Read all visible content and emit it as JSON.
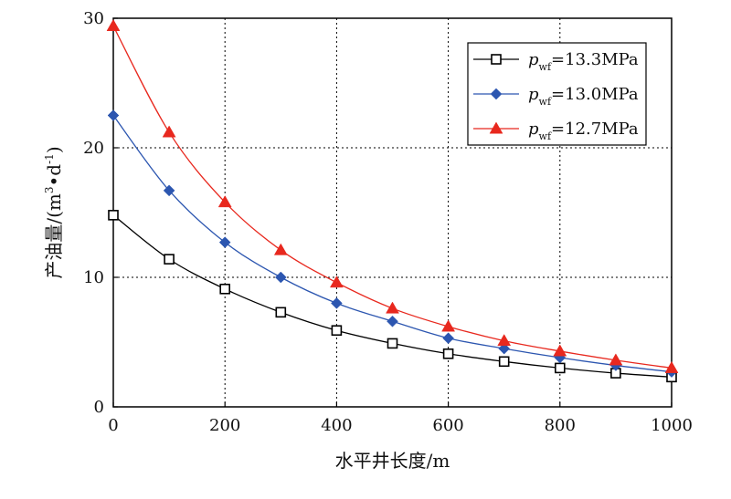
{
  "chart_data": {
    "type": "line",
    "title": "",
    "xlabel": "水平井长度/m",
    "ylabel_main": "产油量/(m",
    "ylabel_sup1": "3",
    "ylabel_mid": "•d",
    "ylabel_sup2": "-1",
    "ylabel_end": ")",
    "x": [
      0,
      100,
      200,
      300,
      400,
      500,
      600,
      700,
      800,
      900,
      1000
    ],
    "xlim": [
      0,
      1000
    ],
    "ylim": [
      0,
      30
    ],
    "xticks": [
      "0",
      "200",
      "400",
      "600",
      "800",
      "1000"
    ],
    "yticks": [
      "0",
      "10",
      "20",
      "30"
    ],
    "grid": true,
    "legend_position": "top-right",
    "series": [
      {
        "name_prefix": "p",
        "name_sub": "wf",
        "name_value": "=13.3MPa",
        "color": "#000000",
        "marker": "open-square",
        "values": [
          14.8,
          11.4,
          9.1,
          7.3,
          5.9,
          4.9,
          4.1,
          3.5,
          3.0,
          2.6,
          2.3
        ]
      },
      {
        "name_prefix": "p",
        "name_sub": "wf",
        "name_value": "=13.0MPa",
        "color": "#2c56b0",
        "marker": "filled-diamond",
        "values": [
          22.5,
          16.7,
          12.7,
          10.0,
          8.0,
          6.6,
          5.3,
          4.5,
          3.8,
          3.2,
          2.7
        ]
      },
      {
        "name_prefix": "p",
        "name_sub": "wf",
        "name_value": "=12.7MPa",
        "color": "#e8281e",
        "marker": "filled-triangle",
        "values": [
          29.4,
          21.2,
          15.8,
          12.1,
          9.6,
          7.6,
          6.2,
          5.1,
          4.3,
          3.6,
          3.0
        ]
      }
    ]
  }
}
